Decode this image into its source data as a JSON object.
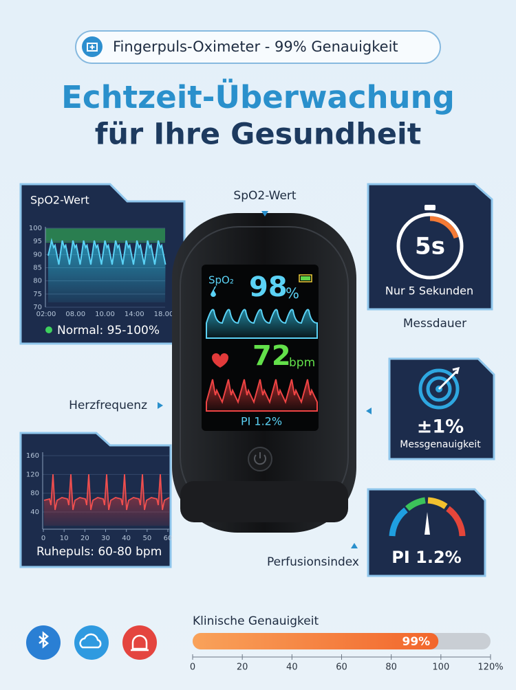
{
  "badge": {
    "text": "Fingerpuls-Oximeter - 99% Genauigkeit"
  },
  "headline": {
    "line1": "Echtzeit-Überwachung",
    "line2": "für Ihre Gesundheit"
  },
  "spo2_panel": {
    "title": "SpO2-Wert",
    "yticks": [
      100,
      95,
      90,
      85,
      80,
      75,
      70
    ],
    "xticks": [
      "02:00",
      "08.00",
      "10.00",
      "14:00",
      "18.00"
    ],
    "legend": "Normal: 95-100%"
  },
  "callouts": {
    "spo2": "SpO2-Wert",
    "heart_rate": "Herzfrequenz",
    "duration": "Messdauer",
    "perfusion": "Perfusionsindex"
  },
  "device": {
    "spo2_label": "SpO₂",
    "spo2_value": "98",
    "spo2_unit": "%",
    "pulse_value": "72",
    "pulse_unit": "bpm",
    "pi": "PI 1.2%"
  },
  "timer_card": {
    "value": "5s",
    "caption": "Nur 5 Sekunden"
  },
  "accuracy_card": {
    "value": "±1%",
    "caption": "Messgenauigkeit"
  },
  "pi_card": {
    "value": "PI 1.2%"
  },
  "pulse_panel": {
    "yticks": [
      160,
      120,
      80,
      40
    ],
    "xticks": [
      0,
      10,
      20,
      30,
      40,
      50,
      60
    ],
    "caption": "Ruhepuls: 60-80 bpm"
  },
  "chart_data": {
    "type": "bar",
    "title": "Klinische Genauigkeit",
    "categories": [
      null
    ],
    "values": [
      99
    ],
    "value_labels": [
      "99%"
    ],
    "xlim": [
      0,
      120
    ],
    "xticks": [
      0,
      20,
      40,
      60,
      80,
      100,
      {
        "value": 120,
        "label": "120%"
      }
    ],
    "color": "#f47a35"
  }
}
